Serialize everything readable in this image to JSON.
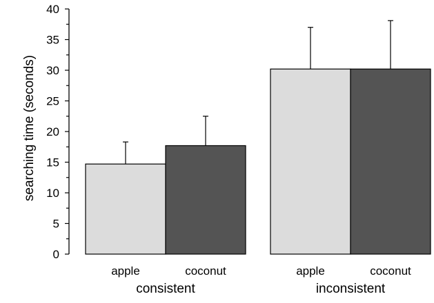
{
  "chart_data": {
    "type": "bar",
    "ylabel": "searching time (seconds)",
    "ylim": [
      0,
      40
    ],
    "yticks": [
      "0",
      "5",
      "10",
      "15",
      "20",
      "25",
      "30",
      "35",
      "40"
    ],
    "y_minor_step": 2.5,
    "groups": [
      {
        "label": "consistent",
        "bars": [
          {
            "label": "apple",
            "value": 14.7,
            "error": 3.6,
            "color": "#dcdcdc"
          },
          {
            "label": "coconut",
            "value": 17.7,
            "error": 4.8,
            "color": "#545454"
          }
        ]
      },
      {
        "label": "inconsistent",
        "bars": [
          {
            "label": "apple",
            "value": 30.2,
            "error": 6.8,
            "color": "#dcdcdc"
          },
          {
            "label": "coconut",
            "value": 30.2,
            "error": 7.9,
            "color": "#545454"
          }
        ]
      }
    ]
  }
}
